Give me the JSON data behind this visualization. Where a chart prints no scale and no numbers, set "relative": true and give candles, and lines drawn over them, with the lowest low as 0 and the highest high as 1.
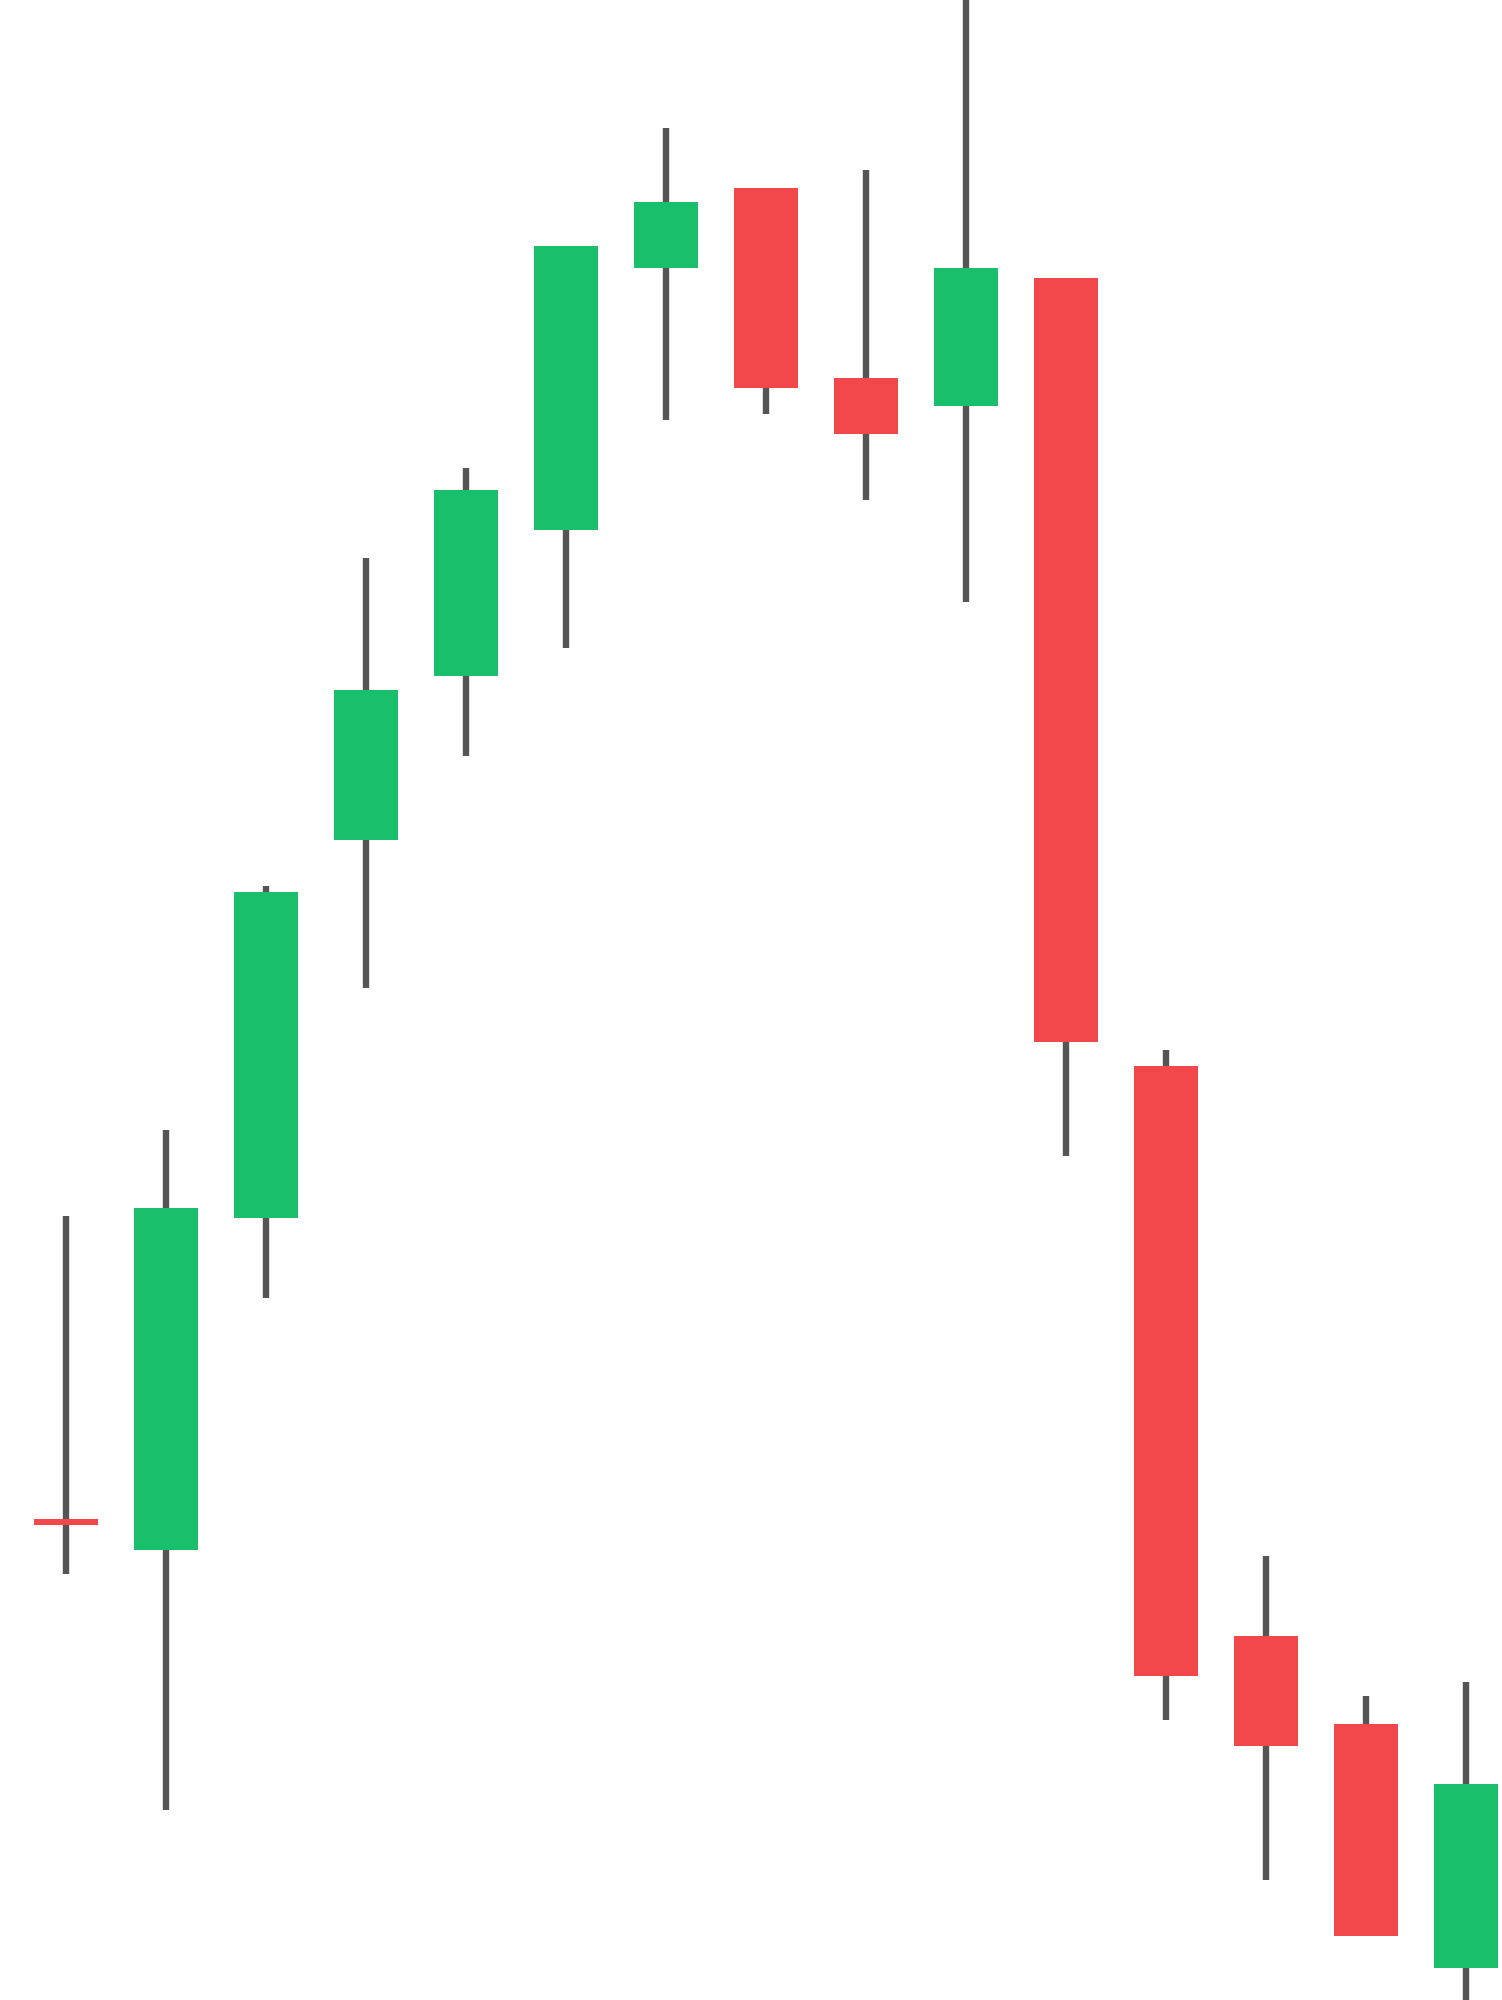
{
  "chart_data": {
    "type": "candlestick",
    "relative": true,
    "categories": [
      null,
      null,
      null,
      null,
      null,
      null,
      null,
      null,
      null,
      null,
      null,
      null,
      null,
      null,
      null
    ],
    "ohlc": [
      [
        0.24,
        0.392,
        0.213,
        0.238
      ],
      [
        0.225,
        0.435,
        0.095,
        0.396
      ],
      [
        0.391,
        0.557,
        0.351,
        0.554
      ],
      [
        0.58,
        0.721,
        0.506,
        0.655
      ],
      [
        0.662,
        0.766,
        0.622,
        0.755
      ],
      [
        0.735,
        0.877,
        0.676,
        0.877
      ],
      [
        0.866,
        0.936,
        0.79,
        0.899
      ],
      [
        0.906,
        0.906,
        0.793,
        0.806
      ],
      [
        0.811,
        0.915,
        0.75,
        0.783
      ],
      [
        0.797,
        1.0,
        0.699,
        0.866
      ],
      [
        0.861,
        0.861,
        0.422,
        0.479
      ],
      [
        0.467,
        0.475,
        0.14,
        0.162
      ],
      [
        0.182,
        0.222,
        0.06,
        0.127
      ],
      [
        0.138,
        0.152,
        0.032,
        0.032
      ],
      [
        0.016,
        0.159,
        0.0,
        0.108
      ]
    ],
    "colors": [
      "#f2474b",
      "#1abf6b",
      "#1abf6b",
      "#1abf6b",
      "#1abf6b",
      "#1abf6b",
      "#1abf6b",
      "#f2474b",
      "#f2474b",
      "#1abf6b",
      "#f2474b",
      "#f2474b",
      "#f2474b",
      "#f2474b",
      "#1abf6b"
    ]
  }
}
